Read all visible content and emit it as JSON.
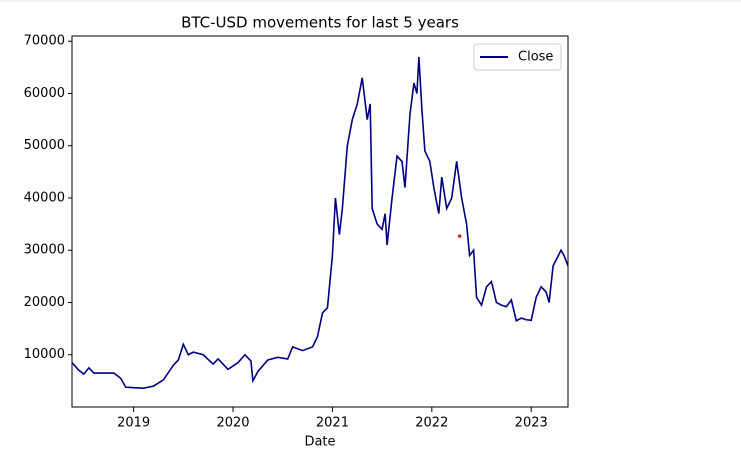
{
  "chart_data": {
    "type": "line",
    "title": "BTC-USD movements for last 5 years",
    "x_label": "Date",
    "x": [
      2018.38,
      2018.45,
      2018.5,
      2018.55,
      2018.6,
      2018.7,
      2018.8,
      2018.87,
      2018.92,
      2019.0,
      2019.1,
      2019.2,
      2019.3,
      2019.4,
      2019.45,
      2019.5,
      2019.55,
      2019.6,
      2019.7,
      2019.8,
      2019.85,
      2019.95,
      2020.05,
      2020.12,
      2020.18,
      2020.2,
      2020.25,
      2020.35,
      2020.45,
      2020.55,
      2020.6,
      2020.7,
      2020.8,
      2020.85,
      2020.9,
      2020.95,
      2021.0,
      2021.03,
      2021.07,
      2021.1,
      2021.15,
      2021.2,
      2021.25,
      2021.3,
      2021.35,
      2021.38,
      2021.4,
      2021.45,
      2021.5,
      2021.53,
      2021.55,
      2021.6,
      2021.65,
      2021.7,
      2021.73,
      2021.78,
      2021.82,
      2021.85,
      2021.87,
      2021.9,
      2021.93,
      2021.98,
      2022.02,
      2022.07,
      2022.1,
      2022.15,
      2022.2,
      2022.25,
      2022.3,
      2022.35,
      2022.38,
      2022.42,
      2022.45,
      2022.5,
      2022.55,
      2022.6,
      2022.65,
      2022.7,
      2022.75,
      2022.8,
      2022.85,
      2022.9,
      2022.95,
      2023.0,
      2023.05,
      2023.1,
      2023.15,
      2023.18,
      2023.22,
      2023.26,
      2023.3,
      2023.33,
      2023.37
    ],
    "series": [
      {
        "name": "Close",
        "color": "#000080",
        "values": [
          8500,
          7000,
          6300,
          7500,
          6500,
          6500,
          6500,
          5500,
          3800,
          3700,
          3600,
          4000,
          5200,
          8000,
          9000,
          12000,
          10000,
          10500,
          10000,
          8200,
          9200,
          7200,
          8500,
          10000,
          8800,
          5000,
          6800,
          9000,
          9500,
          9200,
          11500,
          10800,
          11500,
          13500,
          18000,
          19000,
          29000,
          40000,
          33000,
          38000,
          50000,
          55000,
          58000,
          63000,
          55000,
          58000,
          38000,
          35000,
          34000,
          37000,
          31000,
          40000,
          48000,
          47000,
          42000,
          56000,
          62000,
          60000,
          67000,
          57000,
          49000,
          47000,
          42000,
          37000,
          44000,
          38000,
          40000,
          47000,
          40000,
          35000,
          29000,
          30000,
          21000,
          19500,
          23000,
          24000,
          20000,
          19500,
          19200,
          20500,
          16500,
          17000,
          16700,
          16600,
          21000,
          23000,
          22000,
          20000,
          27000,
          28500,
          30000,
          29000,
          27000
        ]
      }
    ],
    "marker": {
      "x": 2022.28,
      "y": 32700,
      "color": "#d62728"
    },
    "xlim": [
      2018.38,
      2023.37
    ],
    "xticks": [
      2019,
      2020,
      2021,
      2022,
      2023
    ],
    "ylim": [
      0,
      71000
    ],
    "yticks": [
      10000,
      20000,
      30000,
      40000,
      50000,
      60000,
      70000
    ],
    "legend": "upper right"
  }
}
